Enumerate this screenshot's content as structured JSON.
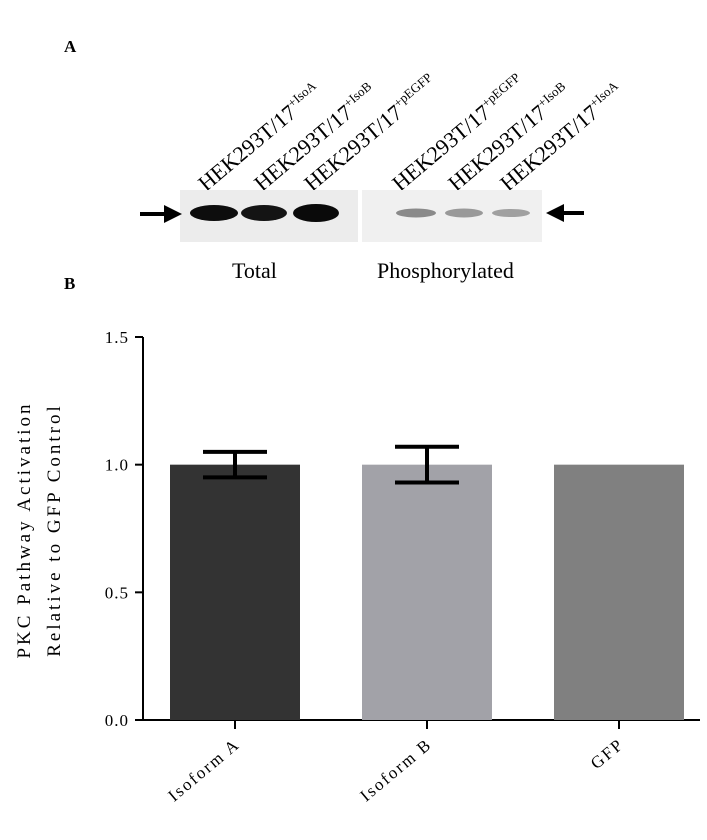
{
  "panel_a_label": "A",
  "panel_b_label": "B",
  "blot": {
    "lanes": [
      {
        "base": "HEK293T/17",
        "sup": "+IsoA"
      },
      {
        "base": "HEK293T/17",
        "sup": "+IsoB"
      },
      {
        "base": "HEK293T/17",
        "sup": "+pEGFP"
      },
      {
        "base": "HEK293T/17",
        "sup": "+pEGFP"
      },
      {
        "base": "HEK293T/17",
        "sup": "+IsoB"
      },
      {
        "base": "HEK293T/17",
        "sup": "+IsoA"
      }
    ],
    "total_label": "Total",
    "phos_label": "Phosphorylated"
  },
  "chart_data": {
    "type": "bar",
    "categories": [
      "Isoform A",
      "Isoform B",
      "GFP"
    ],
    "values": [
      1.0,
      1.0,
      1.0
    ],
    "error": [
      0.05,
      0.07,
      0.0
    ],
    "colors": [
      "#333333",
      "#a2a2a8",
      "#808080"
    ],
    "ylabel_line1": "PKC Pathway Activation",
    "ylabel_line2": "Relative to GFP Control",
    "ylim": [
      0.0,
      1.5
    ],
    "yticks": [
      0.0,
      0.5,
      1.0,
      1.5
    ],
    "ytick_labels": [
      "0.0",
      "0.5",
      "1.0",
      "1.5"
    ],
    "grid": false
  }
}
